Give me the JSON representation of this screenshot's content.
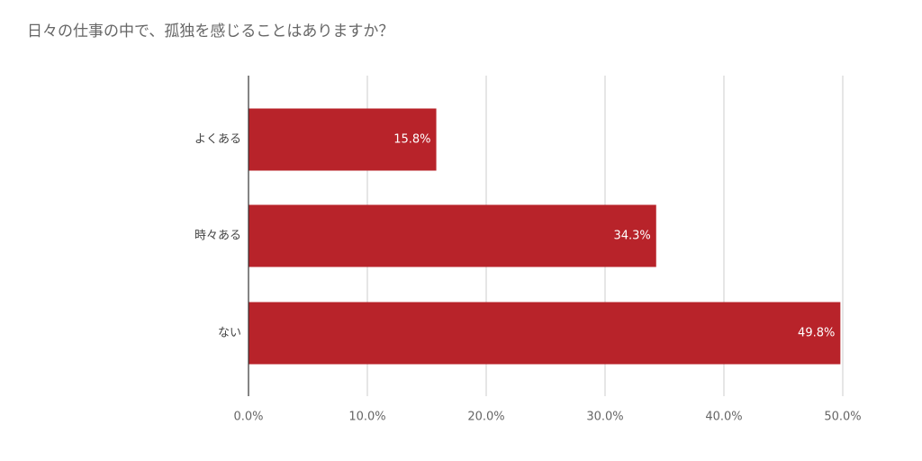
{
  "chart_data": {
    "type": "bar",
    "orientation": "horizontal",
    "title": "日々の仕事の中で、孤独を感じることはありますか？",
    "categories": [
      "よくある",
      "時々ある",
      "ない"
    ],
    "values": [
      15.8,
      34.3,
      49.8
    ],
    "value_labels": [
      "15.8%",
      "34.3%",
      "49.8%"
    ],
    "color": "#b8232a",
    "xlim": [
      0,
      50
    ],
    "xticks": [
      {
        "value": 0,
        "label": "0.0%"
      },
      {
        "value": 10,
        "label": "10.0%"
      },
      {
        "value": 20,
        "label": "20.0%"
      },
      {
        "value": 30,
        "label": "30.0%"
      },
      {
        "value": 40,
        "label": "40.0%"
      },
      {
        "value": 50,
        "label": "50.0%"
      }
    ],
    "grid": true
  }
}
